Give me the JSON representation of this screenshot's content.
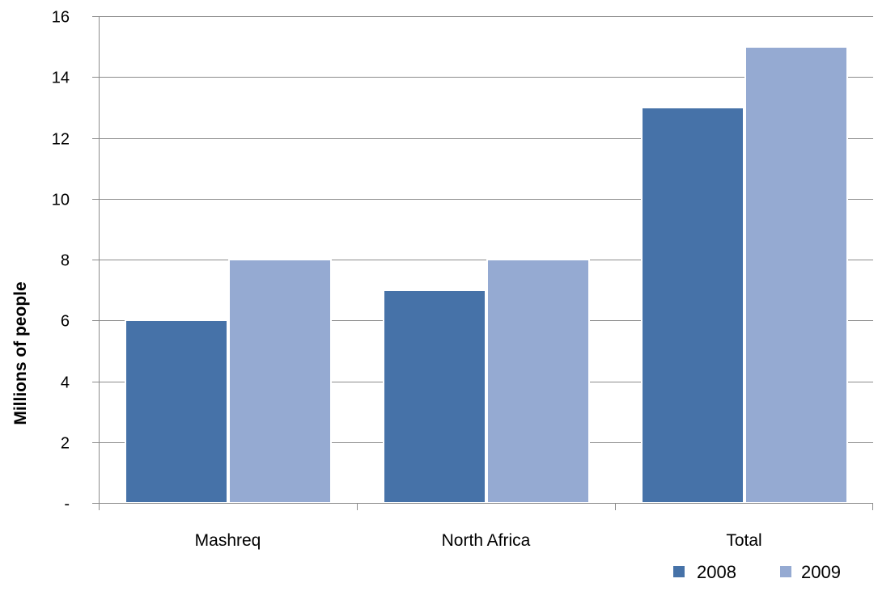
{
  "chart_data": {
    "type": "bar",
    "categories": [
      "Mashreq",
      "North Africa",
      "Total"
    ],
    "series": [
      {
        "name": "2008",
        "values": [
          6,
          7,
          13
        ],
        "color": "#4672A8"
      },
      {
        "name": "2009",
        "values": [
          8,
          8,
          15
        ],
        "color": "#95AAD2"
      }
    ],
    "ylabel": "Millions of people",
    "xlabel": "",
    "ylim": [
      0,
      16
    ],
    "yticks": [
      {
        "value": 0,
        "label": "-"
      },
      {
        "value": 2,
        "label": "2"
      },
      {
        "value": 4,
        "label": "4"
      },
      {
        "value": 6,
        "label": "6"
      },
      {
        "value": 8,
        "label": "8"
      },
      {
        "value": 10,
        "label": "10"
      },
      {
        "value": 12,
        "label": "12"
      },
      {
        "value": 14,
        "label": "14"
      },
      {
        "value": 16,
        "label": "16"
      }
    ],
    "grid": true,
    "legend_position": "bottom-right"
  }
}
